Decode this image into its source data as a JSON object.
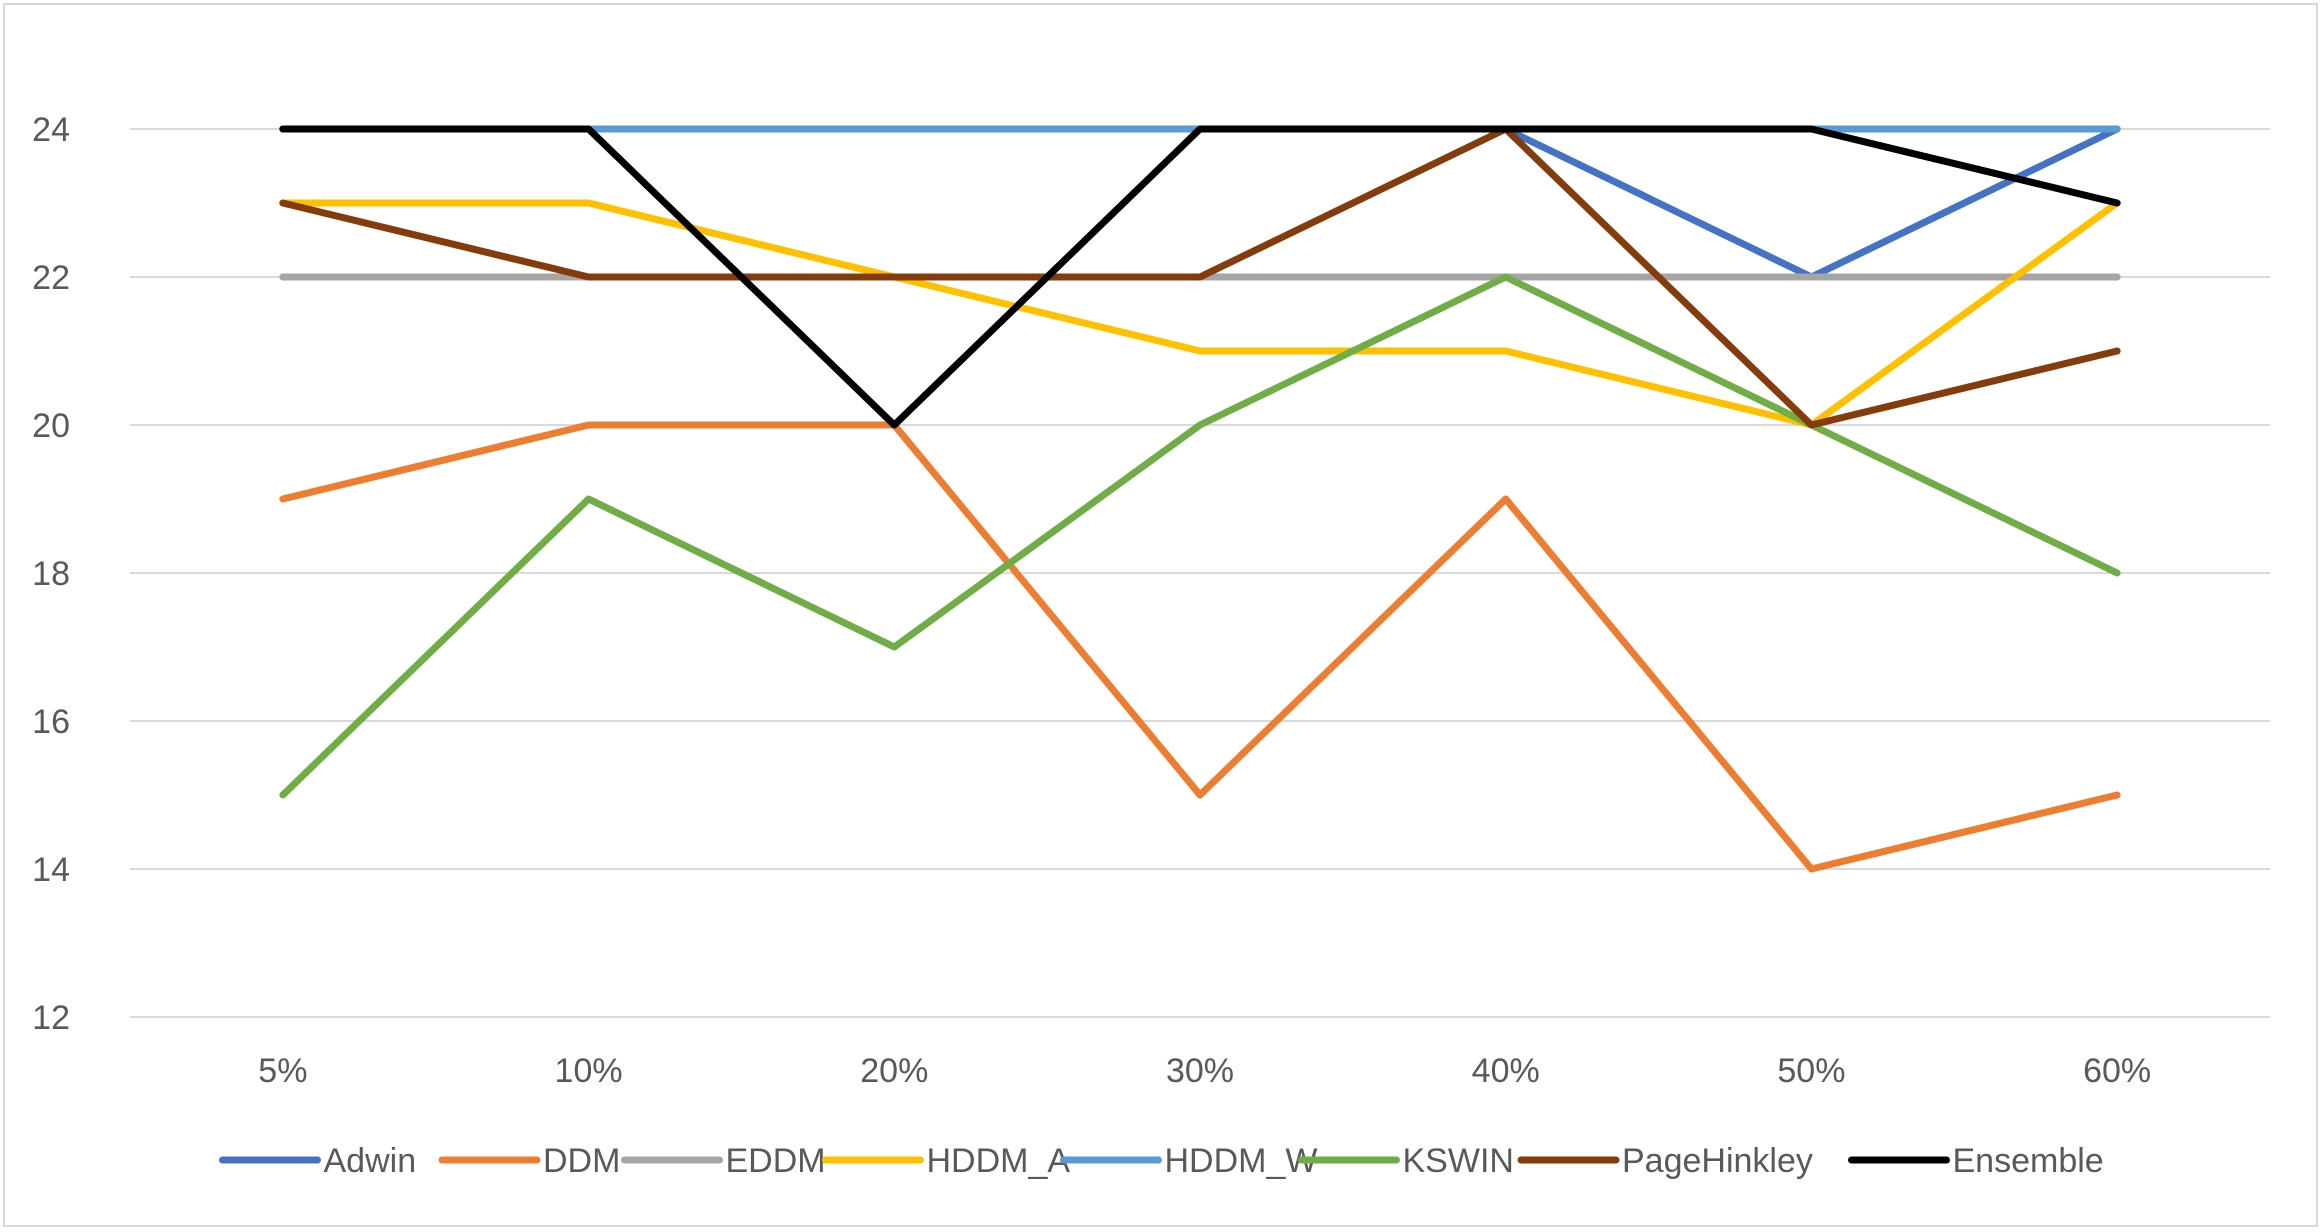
{
  "chart_data": {
    "type": "line",
    "title": "",
    "xlabel": "",
    "ylabel": "",
    "categories": [
      "5%",
      "10%",
      "20%",
      "30%",
      "40%",
      "50%",
      "60%"
    ],
    "ylim": [
      12,
      24
    ],
    "yticks": [
      12,
      14,
      16,
      18,
      20,
      22,
      24
    ],
    "grid": "horizontal",
    "legend_position": "bottom",
    "series": [
      {
        "name": "Adwin",
        "color": "#4472C4",
        "values": [
          24,
          24,
          24,
          24,
          24,
          22,
          24
        ]
      },
      {
        "name": "DDM",
        "color": "#ED7D31",
        "values": [
          19,
          20,
          20,
          15,
          19,
          14,
          15
        ]
      },
      {
        "name": "EDDM",
        "color": "#A5A5A5",
        "values": [
          22,
          22,
          22,
          22,
          22,
          22,
          22
        ]
      },
      {
        "name": "HDDM_A",
        "color": "#FFC000",
        "values": [
          23,
          23,
          22,
          21,
          21,
          20,
          23
        ]
      },
      {
        "name": "HDDM_W",
        "color": "#5B9BD5",
        "values": [
          24,
          24,
          24,
          24,
          24,
          24,
          24
        ]
      },
      {
        "name": "KSWIN",
        "color": "#70AD47",
        "values": [
          15,
          19,
          17,
          20,
          22,
          20,
          18
        ]
      },
      {
        "name": "PageHinkley",
        "color": "#843C0C",
        "values": [
          23,
          22,
          22,
          22,
          24,
          20,
          21
        ]
      },
      {
        "name": "Ensemble",
        "color": "#000000",
        "values": [
          24,
          24,
          20,
          24,
          24,
          24,
          23
        ]
      }
    ]
  }
}
